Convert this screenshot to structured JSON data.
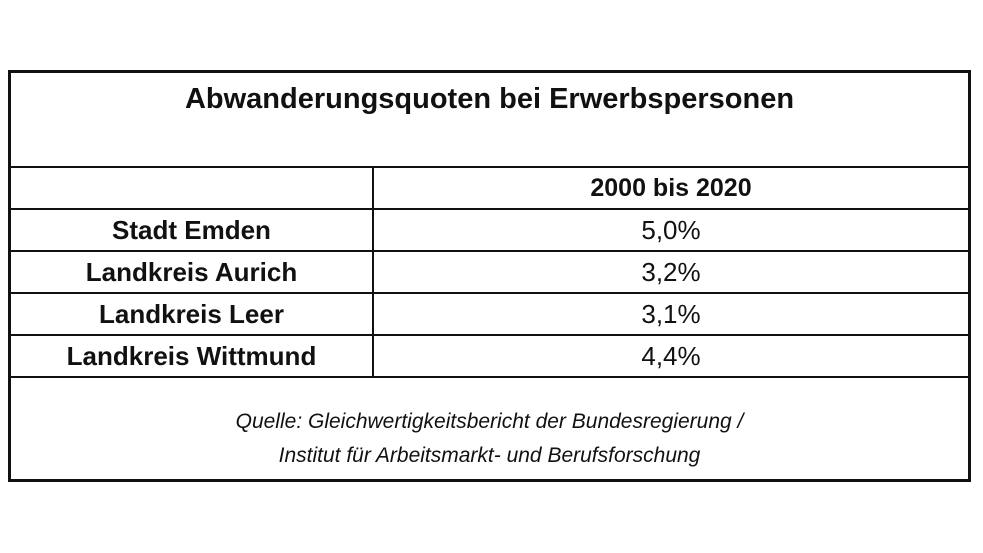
{
  "title": "Abwanderungsquoten bei Erwerbspersonen",
  "column_header": "2000 bis 2020",
  "rows": [
    {
      "label": "Stadt Emden",
      "value": "5,0%"
    },
    {
      "label": "Landkreis Aurich",
      "value": "3,2%"
    },
    {
      "label": "Landkreis Leer",
      "value": "3,1%"
    },
    {
      "label": "Landkreis Wittmund",
      "value": "4,4%"
    }
  ],
  "source": {
    "line1": "Quelle: Gleichwertigkeitsbericht der Bundesregierung /",
    "line2": "Institut für Arbeitsmarkt- und Berufsforschung"
  }
}
